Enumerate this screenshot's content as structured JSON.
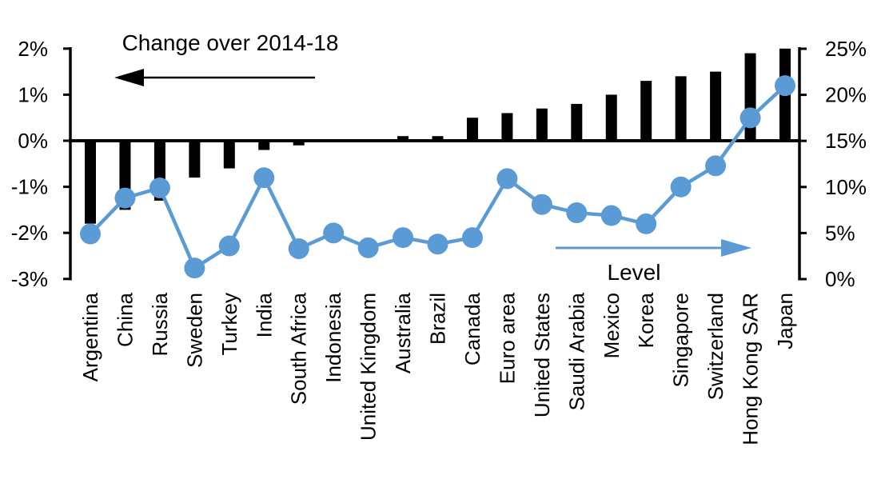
{
  "chart_data": {
    "type": "bar",
    "subtype": "combo-bar-line-dual-axis",
    "title": "Change over 2014-18",
    "categories": [
      "Argentina",
      "China",
      "Russia",
      "Sweden",
      "Turkey",
      "India",
      "South Africa",
      "Indonesia",
      "United Kingdom",
      "Australia",
      "Brazil",
      "Canada",
      "Euro area",
      "United States",
      "Saudi Arabia",
      "Mexico",
      "Korea",
      "Singapore",
      "Switzerland",
      "Hong Kong SAR",
      "Japan"
    ],
    "series": [
      {
        "name": "Change over 2014-18",
        "type": "bar",
        "axis": "left",
        "color": "#000000",
        "values": [
          -1.8,
          -1.5,
          -1.3,
          -0.8,
          -0.6,
          -0.2,
          -0.1,
          0,
          0,
          0.1,
          0.1,
          0.5,
          0.6,
          0.7,
          0.8,
          1.0,
          1.3,
          1.4,
          1.5,
          1.9,
          2.0
        ]
      },
      {
        "name": "Level",
        "type": "line",
        "axis": "right",
        "color": "#5B9BD5",
        "values": [
          4.9,
          8.8,
          9.9,
          1.2,
          3.6,
          11,
          3.3,
          5,
          3.4,
          4.5,
          3.8,
          4.5,
          10.9,
          8.1,
          7.2,
          6.9,
          6,
          10,
          12.3,
          17.5,
          21
        ]
      }
    ],
    "left_axis": {
      "unit": "%",
      "min": -3,
      "max": 2,
      "grid": false,
      "ticks": [
        {
          "label": "2%",
          "value": 2
        },
        {
          "label": "1%",
          "value": 1
        },
        {
          "label": "0%",
          "value": 0
        },
        {
          "label": "-1%",
          "value": -1
        },
        {
          "label": "-2%",
          "value": -2
        },
        {
          "label": "-3%",
          "value": -3
        }
      ]
    },
    "right_axis": {
      "unit": "%",
      "min": 0,
      "max": 25,
      "grid": false,
      "ticks": [
        {
          "label": "25%",
          "value": 25
        },
        {
          "label": "20%",
          "value": 20
        },
        {
          "label": "15%",
          "value": 15
        },
        {
          "label": "10%",
          "value": 10
        },
        {
          "label": "5%",
          "value": 5
        },
        {
          "label": "0%",
          "value": 0
        }
      ]
    },
    "annotations": {
      "bar_series_label": "Change over 2014-18",
      "bar_series_arrow_direction": "left",
      "line_series_label": "Level",
      "line_series_arrow_direction": "right"
    },
    "colors": {
      "bar": "#000000",
      "line": "#5B9BD5",
      "axis": "#000000",
      "background": "#ffffff"
    }
  }
}
